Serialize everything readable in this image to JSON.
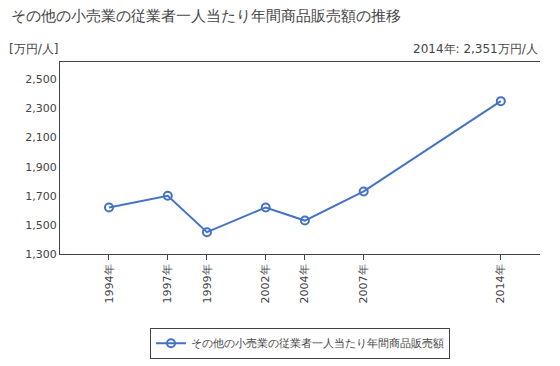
{
  "chart_data": {
    "type": "line",
    "title": "その他の小売業の従業者一人当たり年間商品販売額の推移",
    "ylabel": "[万円/人]",
    "annotation": "2014年: 2,351万円/人",
    "x": [
      1994,
      1997,
      1999,
      2002,
      2004,
      2007,
      2014
    ],
    "series": [
      {
        "name": "その他の小売業の従業者一人当たり年間商品販売額",
        "color": "#4472C4",
        "values": [
          1620,
          1700,
          1450,
          1620,
          1530,
          1730,
          2351
        ]
      }
    ],
    "xlim": [
      1991.5,
      2016
    ],
    "xticks": [
      {
        "value": 1994,
        "label": "1994年"
      },
      {
        "value": 1997,
        "label": "1997年"
      },
      {
        "value": 1999,
        "label": "1999年"
      },
      {
        "value": 2002,
        "label": "2002年"
      },
      {
        "value": 2004,
        "label": "2004年"
      },
      {
        "value": 2007,
        "label": "2007年"
      },
      {
        "value": 2014,
        "label": "2014年"
      }
    ],
    "ylim": [
      1300,
      2620
    ],
    "yticks": [
      {
        "value": 1300,
        "label": "1,300"
      },
      {
        "value": 1500,
        "label": "1,500"
      },
      {
        "value": 1700,
        "label": "1,700"
      },
      {
        "value": 1900,
        "label": "1,900"
      },
      {
        "value": 2100,
        "label": "2,100"
      },
      {
        "value": 2300,
        "label": "2,300"
      },
      {
        "value": 2500,
        "label": "2,500"
      }
    ],
    "grid": false,
    "legend": "bottom",
    "marker": "circle-open",
    "line_style": "solid"
  }
}
